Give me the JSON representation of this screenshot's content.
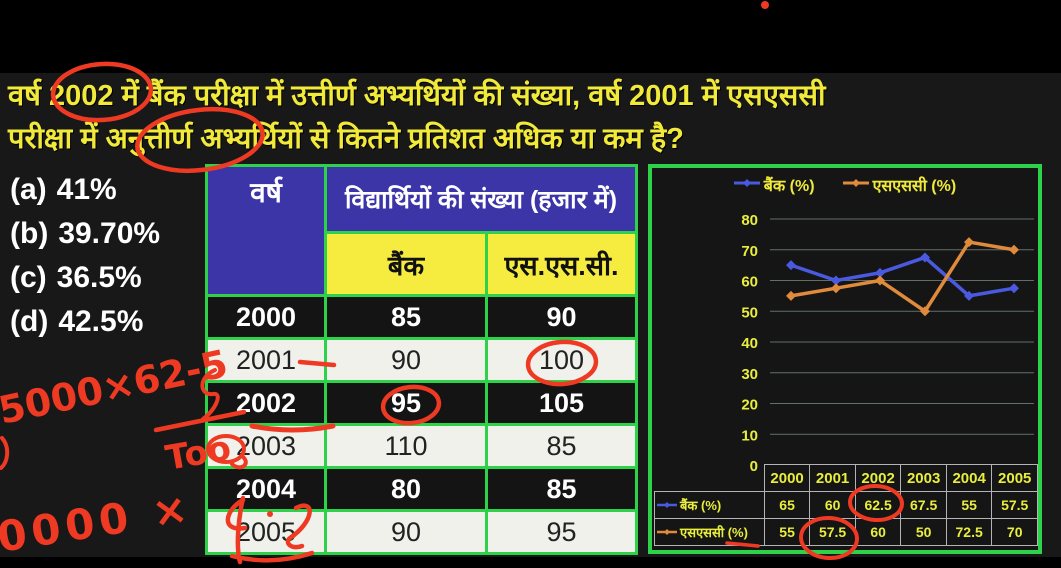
{
  "colors": {
    "annotation_red": "#ee3a22",
    "question_yellow": "#f2ea3a",
    "table_border_green": "#2ed24a",
    "header_blue": "#3c35a8",
    "header_yellow": "#f5ec3f",
    "bank_line_blue": "#4a5ae0",
    "ssc_line_orange": "#e08a3c"
  },
  "question": {
    "line1": "वर्ष 2002 में बैंक परीक्षा में उत्तीर्ण अभ्यर्थियों की संख्या, वर्ष 2001 में एसएससी",
    "line2": "परीक्षा में अनुत्तीर्ण अभ्यर्थियों से कितने प्रतिशत अधिक या कम है?"
  },
  "options": [
    {
      "label": "(a)",
      "value": "41%"
    },
    {
      "label": "(b)",
      "value": "39.70%"
    },
    {
      "label": "(c)",
      "value": "36.5%"
    },
    {
      "label": "(d)",
      "value": "42.5%"
    }
  ],
  "main_table": {
    "col_year": "वर्ष",
    "col_students": "विद्यार्थियों की संख्या (हजार में)",
    "col_bank": "बैंक",
    "col_ssc": "एस.एस.सी.",
    "rows": [
      {
        "year": "2000",
        "bank": "85",
        "ssc": "90"
      },
      {
        "year": "2001",
        "bank": "90",
        "ssc": "100"
      },
      {
        "year": "2002",
        "bank": "95",
        "ssc": "105"
      },
      {
        "year": "2003",
        "bank": "110",
        "ssc": "85"
      },
      {
        "year": "2004",
        "bank": "80",
        "ssc": "85"
      },
      {
        "year": "2005",
        "bank": "90",
        "ssc": "95"
      }
    ]
  },
  "chart_data": {
    "type": "line",
    "categories": [
      "2000",
      "2001",
      "2002",
      "2003",
      "2004",
      "2005"
    ],
    "series": [
      {
        "name": "बैंक (%)",
        "color": "#4a5ae0",
        "values": [
          65,
          60,
          62.5,
          67.5,
          55,
          57.5
        ]
      },
      {
        "name": "एसएससी (%)",
        "color": "#e08a3c",
        "values": [
          55,
          57.5,
          60,
          50,
          72.5,
          70
        ]
      }
    ],
    "title": "",
    "xlabel": "",
    "ylabel": "",
    "ylim": [
      0,
      80
    ],
    "yticks": [
      0,
      10,
      20,
      30,
      40,
      50,
      60,
      70,
      80
    ],
    "grid": true,
    "legend_position": "top"
  },
  "handwriting": {
    "numerator": "5000×62-5",
    "denominator": "Too",
    "partial": "0000 ×"
  }
}
